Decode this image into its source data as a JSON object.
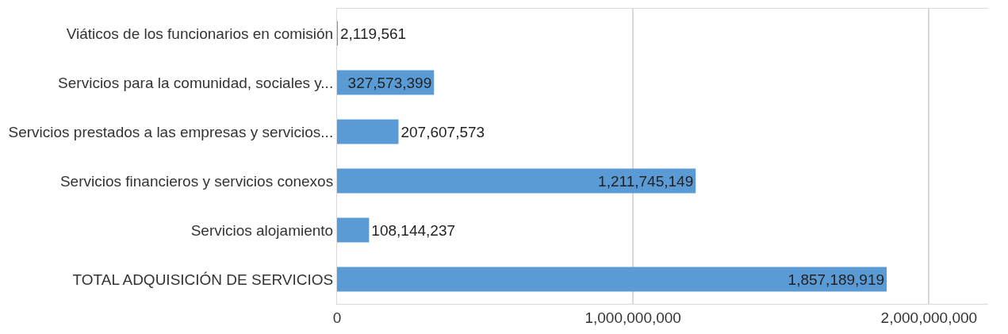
{
  "chart_data": {
    "type": "bar",
    "orientation": "horizontal",
    "categories": [
      "Viáticos de los funcionarios en comisión",
      "Servicios para la comunidad, sociales y...",
      "Servicios prestados a las empresas y servicios...",
      "Servicios financieros y servicios conexos",
      "Servicios alojamiento",
      "TOTAL ADQUISICIÓN DE SERVICIOS"
    ],
    "values": [
      2119561,
      327573399,
      207607573,
      1211745149,
      108144237,
      1857189919
    ],
    "color": "#5b9bd5",
    "value_labels": [
      "2,119,561",
      "327,573,399",
      "207,607,573",
      "1,211,745,149",
      "108,144,237",
      "1,857,189,919"
    ],
    "xlim": [
      0,
      2200000000
    ],
    "xticks": [
      {
        "value": 0,
        "label": "0"
      },
      {
        "value": 1000000000,
        "label": "1,000,000,000"
      },
      {
        "value": 2000000000,
        "label": "2,000,000,000"
      }
    ],
    "grid": "x"
  }
}
